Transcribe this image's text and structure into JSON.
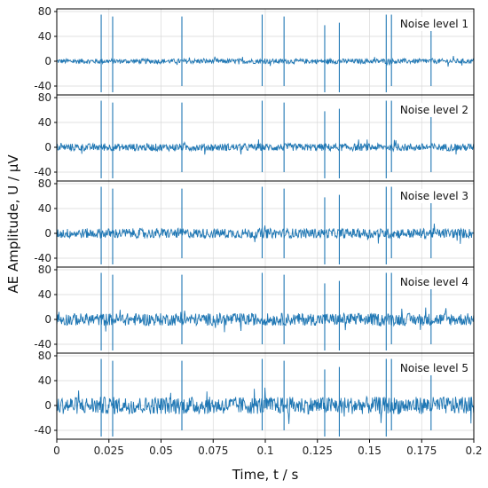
{
  "chart_data": {
    "type": "line",
    "xlabel": "Time, t / s",
    "ylabel": "AE Amplitude, U / μV",
    "xlim": [
      0,
      0.2
    ],
    "ylim": [
      -50,
      80
    ],
    "x_ticks": [
      "0",
      "0.025",
      "0.05",
      "0.075",
      "0.1",
      "0.125",
      "0.15",
      "0.175",
      "0.2"
    ],
    "y_ticks": [
      "-40",
      "0",
      "40",
      "80"
    ],
    "grid": true,
    "line_color": "#1f77b4",
    "panels": [
      {
        "label": "Noise level 1",
        "noise_amplitude": 4
      },
      {
        "label": "Noise level 2",
        "noise_amplitude": 6
      },
      {
        "label": "Noise level 3",
        "noise_amplitude": 8
      },
      {
        "label": "Noise level 4",
        "noise_amplitude": 10
      },
      {
        "label": "Noise level 5",
        "noise_amplitude": 14
      }
    ],
    "bursts": [
      {
        "t": 0.0213,
        "max": 75,
        "min": -50
      },
      {
        "t": 0.0268,
        "max": 72,
        "min": -50
      },
      {
        "t": 0.06,
        "max": 72,
        "min": -40
      },
      {
        "t": 0.0985,
        "max": 75,
        "min": -40
      },
      {
        "t": 0.109,
        "max": 72,
        "min": -40
      },
      {
        "t": 0.1285,
        "max": 58,
        "min": -50
      },
      {
        "t": 0.1355,
        "max": 62,
        "min": -50
      },
      {
        "t": 0.158,
        "max": 75,
        "min": -50
      },
      {
        "t": 0.1605,
        "max": 75,
        "min": -40
      },
      {
        "t": 0.1795,
        "max": 58,
        "min": -40
      }
    ]
  }
}
